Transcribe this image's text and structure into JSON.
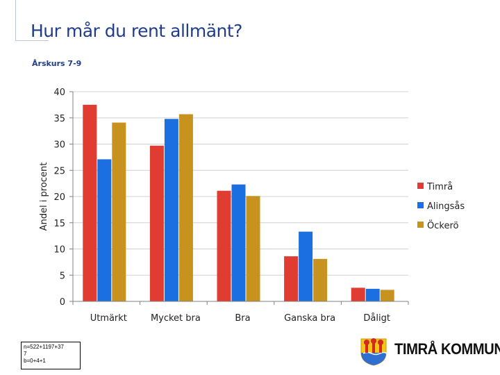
{
  "title": "Hur mår du rent allmänt?",
  "subtitle": "Årskurs 7-9",
  "note_lines": [
    "n=522+1197+37",
    "7",
    "b=0+4+1"
  ],
  "logo_text": "TIMRÅ KOMMUN",
  "colors": {
    "title": "#1f3d8c",
    "Timrå": "#e03c31",
    "Alingsås": "#1b6fe0",
    "Öckerö": "#c8921e"
  },
  "chart_data": {
    "type": "bar",
    "title": "Hur mår du rent allmänt?",
    "subtitle": "Årskurs 7-9",
    "ylabel": "Andel i procent",
    "xlabel": "",
    "ylim": [
      0,
      40
    ],
    "yticks": [
      0,
      5,
      10,
      15,
      20,
      25,
      30,
      35,
      40
    ],
    "categories": [
      "Utmärkt",
      "Mycket bra",
      "Bra",
      "Ganska bra",
      "Dåligt"
    ],
    "series": [
      {
        "name": "Timrå",
        "color": "#e03c31",
        "values": [
          37.5,
          29.7,
          21.1,
          8.6,
          2.6
        ]
      },
      {
        "name": "Alingsås",
        "color": "#1b6fe0",
        "values": [
          27.1,
          34.8,
          22.3,
          13.3,
          2.4
        ]
      },
      {
        "name": "Öckerö",
        "color": "#c8921e",
        "values": [
          34.1,
          35.7,
          20.1,
          8.1,
          2.2
        ]
      }
    ],
    "legend_position": "right"
  }
}
